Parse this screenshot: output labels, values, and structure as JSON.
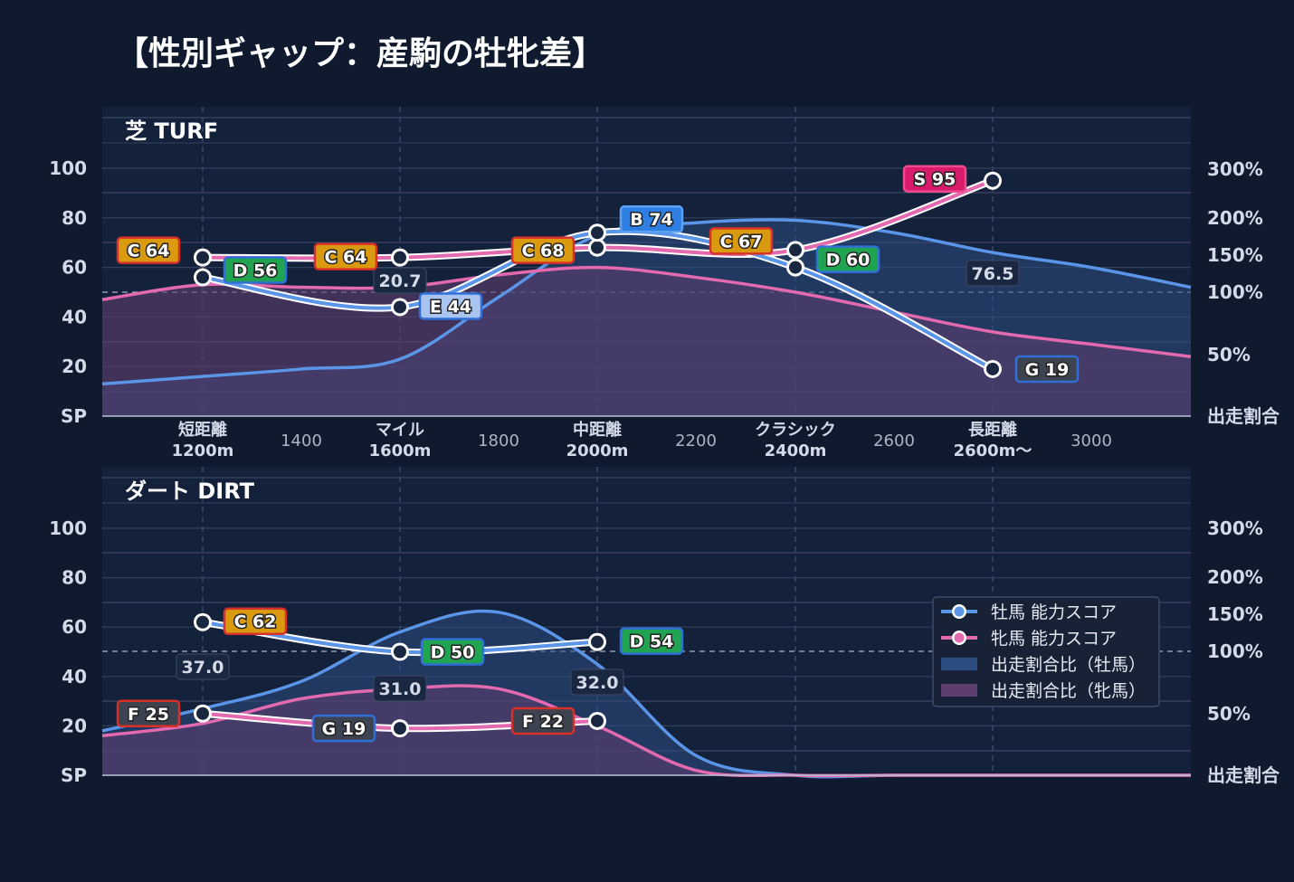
{
  "title": "【性別ギャップ：産駒の牡牝差】",
  "colors": {
    "male": "#5b95e8",
    "female": "#e46aaf",
    "male_area": "#2b4c80",
    "female_area": "#5e3e6e",
    "grid": "#33405c",
    "bg": "#0f1a2e",
    "panel": "#14213b"
  },
  "grade_colors": {
    "S": {
      "fill": "#d81b6a",
      "stroke": "#f04a8c"
    },
    "B": {
      "fill": "#2f7fe3",
      "stroke": "#5aa0f5"
    },
    "C": {
      "fill": "#d99a10",
      "stroke": "#d8312a"
    },
    "D": {
      "fill": "#21a452",
      "stroke": "#2f6fd8"
    },
    "E": {
      "fill": "#aac4f0",
      "stroke": "#2f6fd8"
    },
    "F": {
      "fill": "#3d4350",
      "stroke": "#d8312a"
    },
    "G": {
      "fill": "#3d4350",
      "stroke": "#2f6fd8"
    }
  },
  "axes": {
    "left_ticks": [
      "SP",
      "20",
      "40",
      "60",
      "80",
      "100"
    ],
    "right_ticks": [
      "出走割合",
      "50%",
      "100%",
      "150%",
      "200%",
      "300%"
    ],
    "x_major": [
      {
        "line1": "短距離",
        "line2": "1200m"
      },
      {
        "line1": "マイル",
        "line2": "1600m"
      },
      {
        "line1": "中距離",
        "line2": "2000m"
      },
      {
        "line1": "クラシック",
        "line2": "2400m"
      },
      {
        "line1": "長距離",
        "line2": "2600m〜"
      }
    ],
    "x_minor": [
      "1400",
      "1800",
      "2200",
      "2600",
      "3000"
    ]
  },
  "legend": [
    {
      "label": "牡馬 能力スコア",
      "kind": "line",
      "color": "#5b95e8"
    },
    {
      "label": "牝馬 能力スコア",
      "kind": "line",
      "color": "#e46aaf"
    },
    {
      "label": "出走割合比（牡馬）",
      "kind": "area",
      "color": "#2b4c80"
    },
    {
      "label": "出走割合比（牝馬）",
      "kind": "area",
      "color": "#5e3e6e"
    }
  ],
  "chart_data": [
    {
      "type": "line",
      "title": "芝 TURF",
      "ylim": [
        0,
        100
      ],
      "x": [
        "短距離",
        "マイル",
        "中距離",
        "クラシック",
        "長距離"
      ],
      "series": [
        {
          "name": "牡馬 能力スコア",
          "values": [
            56,
            44,
            74,
            60,
            19
          ],
          "grades": [
            "D",
            "E",
            "B",
            "D",
            "G"
          ]
        },
        {
          "name": "牝馬 能力スコア",
          "values": [
            64,
            64,
            68,
            67,
            95
          ],
          "grades": [
            "C",
            "C",
            "C",
            "C",
            "S"
          ]
        }
      ],
      "share_labels": [
        "",
        "20.7",
        "",
        "",
        "76.5"
      ],
      "share_ratio": {
        "male": [
          13,
          16,
          19,
          23,
          48,
          73,
          78,
          79,
          74,
          66,
          60,
          52
        ],
        "female": [
          47,
          53,
          52,
          52,
          57,
          60,
          56,
          50,
          42,
          34,
          29,
          24
        ]
      }
    },
    {
      "type": "line",
      "title": "ダート DIRT",
      "ylim": [
        0,
        100
      ],
      "x": [
        "短距離",
        "マイル",
        "中距離"
      ],
      "series": [
        {
          "name": "牡馬 能力スコア",
          "values": [
            62,
            50,
            54
          ],
          "grades": [
            "C",
            "D",
            "D"
          ]
        },
        {
          "name": "牝馬 能力スコア",
          "values": [
            25,
            19,
            22
          ],
          "grades": [
            "F",
            "G",
            "F"
          ]
        }
      ],
      "share_labels": [
        "37.0",
        "31.0",
        "32.0"
      ],
      "share_ratio": {
        "male": [
          18,
          27,
          38,
          58,
          66,
          45,
          8,
          0,
          0,
          0,
          0,
          0
        ],
        "female": [
          16,
          21,
          31,
          35,
          35,
          20,
          2,
          0,
          0,
          0,
          0,
          0
        ]
      }
    }
  ]
}
